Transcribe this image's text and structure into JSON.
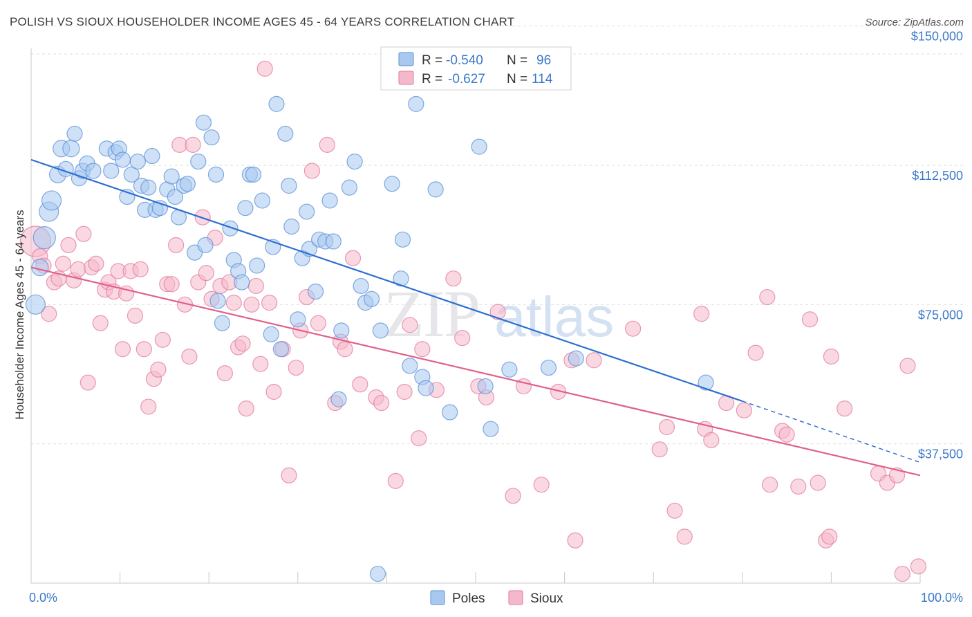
{
  "header": {
    "title": "POLISH VS SIOUX HOUSEHOLDER INCOME AGES 45 - 64 YEARS CORRELATION CHART",
    "source": "Source: ZipAtlas.com"
  },
  "watermark": {
    "zip": "ZIP",
    "atlas": "atlas"
  },
  "legend_top": {
    "rows": [
      {
        "r_label": "R =",
        "r_value": "-0.540",
        "n_label": "N =",
        "n_value": "96"
      },
      {
        "r_label": "R =",
        "r_value": "-0.627",
        "n_label": "N =",
        "n_value": "114"
      }
    ]
  },
  "legend_bottom": {
    "poles": "Poles",
    "sioux": "Sioux"
  },
  "colors": {
    "poles_fill": "#a8c8f0",
    "poles_stroke": "#5b8fd6",
    "poles_line": "#2e6fd1",
    "sioux_fill": "#f5b8cb",
    "sioux_stroke": "#e2799c",
    "sioux_line": "#e0608c",
    "grid": "#dddddd",
    "axis_text": "#3a78c9"
  },
  "chart_data": {
    "type": "scatter",
    "title": "POLISH VS SIOUX HOUSEHOLDER INCOME AGES 45 - 64 YEARS CORRELATION CHART",
    "xlabel": "",
    "ylabel": "Householder Income Ages 45 - 64 years",
    "xlim": [
      0,
      100
    ],
    "ylim": [
      0,
      157000
    ],
    "x_tick_labels": [
      "0.0%",
      "100.0%"
    ],
    "y_ticks": [
      {
        "value": 37500,
        "label": "$37,500"
      },
      {
        "value": 75000,
        "label": "$75,000"
      },
      {
        "value": 112500,
        "label": "$112,500"
      },
      {
        "value": 150000,
        "label": "$150,000"
      }
    ],
    "grid": true,
    "legend_position": "top-center",
    "series": [
      {
        "name": "Poles",
        "r": -0.54,
        "n": 96,
        "trend": {
          "x0": 0,
          "y0": 114000,
          "x1": 80,
          "y1": 49000,
          "dash_to_x": 100,
          "dash_to_y": 32500
        },
        "points": [
          [
            0.5,
            75000,
            14
          ],
          [
            1,
            85000,
            12
          ],
          [
            1.5,
            93000,
            16
          ],
          [
            2,
            100000,
            14
          ],
          [
            2.3,
            103000,
            14
          ],
          [
            3,
            110000,
            12
          ],
          [
            3.4,
            117000,
            12
          ],
          [
            3.9,
            111500,
            11
          ],
          [
            4.5,
            117000,
            12
          ],
          [
            4.9,
            121000,
            11
          ],
          [
            5.4,
            109000,
            11
          ],
          [
            5.8,
            111000,
            11
          ],
          [
            6.3,
            113000,
            11
          ],
          [
            7,
            111000,
            11
          ],
          [
            8.5,
            117000,
            11
          ],
          [
            9,
            111000,
            11
          ],
          [
            9.5,
            116000,
            11
          ],
          [
            9.9,
            117000,
            11
          ],
          [
            10.3,
            114000,
            11
          ],
          [
            10.8,
            104000,
            11
          ],
          [
            11.3,
            110000,
            11
          ],
          [
            12,
            113500,
            11
          ],
          [
            12.4,
            107000,
            11
          ],
          [
            12.8,
            100500,
            11
          ],
          [
            13.2,
            106500,
            11
          ],
          [
            13.6,
            115000,
            11
          ],
          [
            14,
            100500,
            11
          ],
          [
            14.5,
            101000,
            11
          ],
          [
            15.3,
            106000,
            11
          ],
          [
            15.8,
            109500,
            11
          ],
          [
            16.2,
            104000,
            11
          ],
          [
            16.6,
            98500,
            11
          ],
          [
            17.2,
            107000,
            11
          ],
          [
            17.6,
            107500,
            11
          ],
          [
            18.4,
            89000,
            11
          ],
          [
            18.8,
            113500,
            11
          ],
          [
            19.4,
            124000,
            11
          ],
          [
            19.6,
            91000,
            11
          ],
          [
            20.3,
            120000,
            11
          ],
          [
            20.8,
            110000,
            11
          ],
          [
            21,
            76000,
            11
          ],
          [
            21.5,
            70000,
            11
          ],
          [
            22.4,
            95500,
            11
          ],
          [
            22.8,
            87000,
            11
          ],
          [
            23.3,
            84000,
            11
          ],
          [
            23.7,
            81000,
            11
          ],
          [
            24.1,
            101000,
            11
          ],
          [
            24.6,
            110000,
            11
          ],
          [
            25,
            110000,
            11
          ],
          [
            25.4,
            85500,
            11
          ],
          [
            26,
            103000,
            11
          ],
          [
            27,
            67000,
            11
          ],
          [
            27.2,
            90500,
            11
          ],
          [
            27.6,
            129000,
            11
          ],
          [
            28.1,
            63000,
            11
          ],
          [
            28.6,
            121000,
            11
          ],
          [
            29,
            107000,
            11
          ],
          [
            29.3,
            96000,
            11
          ],
          [
            30,
            71000,
            11
          ],
          [
            30.5,
            87500,
            11
          ],
          [
            31,
            100000,
            11
          ],
          [
            31.3,
            90000,
            11
          ],
          [
            32,
            78500,
            11
          ],
          [
            32.4,
            92500,
            11
          ],
          [
            33.1,
            92000,
            11
          ],
          [
            33.6,
            103000,
            11
          ],
          [
            34,
            92000,
            11
          ],
          [
            34.6,
            49500,
            11
          ],
          [
            34.9,
            68000,
            11
          ],
          [
            35.8,
            106500,
            11
          ],
          [
            36.4,
            113500,
            11
          ],
          [
            37.1,
            80000,
            11
          ],
          [
            37.6,
            75500,
            11
          ],
          [
            38.3,
            76500,
            11
          ],
          [
            39,
            2500,
            11
          ],
          [
            39.3,
            68000,
            11
          ],
          [
            40.6,
            107500,
            11
          ],
          [
            41.6,
            82000,
            11
          ],
          [
            41.8,
            92500,
            11
          ],
          [
            42.6,
            58500,
            11
          ],
          [
            43.3,
            129000,
            11
          ],
          [
            44,
            55500,
            11
          ],
          [
            44.4,
            52500,
            11
          ],
          [
            45.5,
            106000,
            11
          ],
          [
            47.1,
            46000,
            11
          ],
          [
            50.4,
            117500,
            11
          ],
          [
            51.1,
            53000,
            11
          ],
          [
            51.7,
            41500,
            11
          ],
          [
            53.8,
            57500,
            11
          ],
          [
            58.2,
            58000,
            11
          ],
          [
            61.3,
            60500,
            11
          ],
          [
            75.9,
            54000,
            11
          ]
        ]
      },
      {
        "name": "Sioux",
        "r": -0.627,
        "n": 114,
        "trend": {
          "x0": 0,
          "y0": 85000,
          "x1": 100,
          "y1": 29000
        },
        "points": [
          [
            0.5,
            92000,
            22
          ],
          [
            1,
            88000,
            11
          ],
          [
            1.4,
            85500,
            11
          ],
          [
            2,
            72500,
            11
          ],
          [
            2.6,
            81000,
            11
          ],
          [
            3.1,
            82000,
            11
          ],
          [
            3.6,
            86000,
            11
          ],
          [
            4.2,
            91000,
            11
          ],
          [
            4.8,
            81500,
            11
          ],
          [
            5.3,
            84500,
            11
          ],
          [
            5.9,
            94000,
            11
          ],
          [
            6.4,
            54000,
            11
          ],
          [
            6.8,
            85000,
            11
          ],
          [
            7.3,
            86000,
            11
          ],
          [
            7.8,
            70000,
            11
          ],
          [
            8.3,
            79000,
            11
          ],
          [
            8.7,
            81000,
            11
          ],
          [
            9.3,
            78500,
            11
          ],
          [
            9.8,
            84000,
            11
          ],
          [
            10.3,
            63000,
            11
          ],
          [
            10.7,
            78000,
            11
          ],
          [
            11.2,
            84000,
            11
          ],
          [
            11.7,
            72000,
            11
          ],
          [
            12.3,
            84500,
            11
          ],
          [
            12.7,
            63000,
            11
          ],
          [
            13.2,
            47500,
            11
          ],
          [
            13.8,
            55000,
            11
          ],
          [
            14.3,
            57500,
            11
          ],
          [
            14.8,
            65500,
            11
          ],
          [
            15.3,
            80500,
            11
          ],
          [
            15.8,
            80500,
            11
          ],
          [
            16.3,
            91000,
            11
          ],
          [
            16.7,
            118000,
            11
          ],
          [
            17.3,
            75000,
            11
          ],
          [
            17.8,
            61000,
            11
          ],
          [
            18.2,
            118000,
            11
          ],
          [
            18.8,
            81000,
            11
          ],
          [
            19.3,
            98500,
            11
          ],
          [
            19.7,
            83500,
            11
          ],
          [
            20.3,
            76500,
            11
          ],
          [
            20.7,
            93000,
            11
          ],
          [
            21.3,
            80000,
            11
          ],
          [
            21.8,
            56500,
            11
          ],
          [
            22.3,
            81000,
            11
          ],
          [
            22.8,
            75500,
            11
          ],
          [
            23.3,
            63500,
            11
          ],
          [
            23.8,
            64500,
            11
          ],
          [
            24.2,
            47000,
            11
          ],
          [
            24.8,
            75000,
            11
          ],
          [
            25.3,
            80000,
            11
          ],
          [
            25.8,
            59000,
            11
          ],
          [
            26.3,
            138500,
            11
          ],
          [
            26.8,
            75500,
            11
          ],
          [
            27.3,
            51500,
            11
          ],
          [
            28.3,
            63000,
            11
          ],
          [
            29,
            29000,
            11
          ],
          [
            29.8,
            58000,
            11
          ],
          [
            30.3,
            68000,
            11
          ],
          [
            31,
            77000,
            11
          ],
          [
            31.6,
            111000,
            11
          ],
          [
            32.3,
            70000,
            11
          ],
          [
            33.3,
            118000,
            11
          ],
          [
            34.2,
            48500,
            11
          ],
          [
            34.8,
            65000,
            11
          ],
          [
            35.3,
            63000,
            11
          ],
          [
            36.2,
            87500,
            11
          ],
          [
            37,
            53500,
            11
          ],
          [
            38.8,
            50000,
            11
          ],
          [
            39.4,
            48500,
            11
          ],
          [
            41,
            27500,
            11
          ],
          [
            42,
            51500,
            11
          ],
          [
            42.6,
            69500,
            11
          ],
          [
            43.6,
            39000,
            11
          ],
          [
            44,
            63000,
            11
          ],
          [
            45.6,
            52000,
            11
          ],
          [
            47.5,
            82000,
            11
          ],
          [
            48.5,
            66000,
            11
          ],
          [
            50.3,
            53000,
            11
          ],
          [
            51.2,
            50000,
            11
          ],
          [
            52.5,
            73000,
            11
          ],
          [
            54.2,
            23500,
            11
          ],
          [
            55.4,
            53000,
            11
          ],
          [
            57.4,
            26500,
            11
          ],
          [
            59.3,
            51500,
            11
          ],
          [
            60.8,
            60000,
            11
          ],
          [
            61.2,
            11500,
            11
          ],
          [
            63.3,
            60000,
            11
          ],
          [
            67.7,
            68500,
            11
          ],
          [
            70.7,
            36000,
            11
          ],
          [
            71.5,
            42000,
            11
          ],
          [
            72.4,
            19500,
            11
          ],
          [
            73.5,
            12500,
            11
          ],
          [
            75.4,
            72500,
            11
          ],
          [
            75.8,
            41500,
            11
          ],
          [
            76.5,
            38500,
            11
          ],
          [
            78.2,
            48500,
            11
          ],
          [
            80.2,
            46500,
            11
          ],
          [
            81.5,
            62000,
            11
          ],
          [
            82.8,
            77000,
            11
          ],
          [
            83.1,
            26500,
            11
          ],
          [
            84.5,
            41000,
            11
          ],
          [
            85,
            40000,
            11
          ],
          [
            86.3,
            26000,
            11
          ],
          [
            87.6,
            71000,
            11
          ],
          [
            88.5,
            27000,
            11
          ],
          [
            89.4,
            11500,
            11
          ],
          [
            89.8,
            12500,
            11
          ],
          [
            90,
            61000,
            11
          ],
          [
            91.5,
            47000,
            11
          ],
          [
            95.3,
            29500,
            11
          ],
          [
            96.3,
            27000,
            11
          ],
          [
            97.4,
            29000,
            11
          ],
          [
            98,
            2500,
            11
          ],
          [
            98.6,
            58500,
            11
          ],
          [
            99.8,
            4500,
            11
          ]
        ]
      }
    ]
  }
}
